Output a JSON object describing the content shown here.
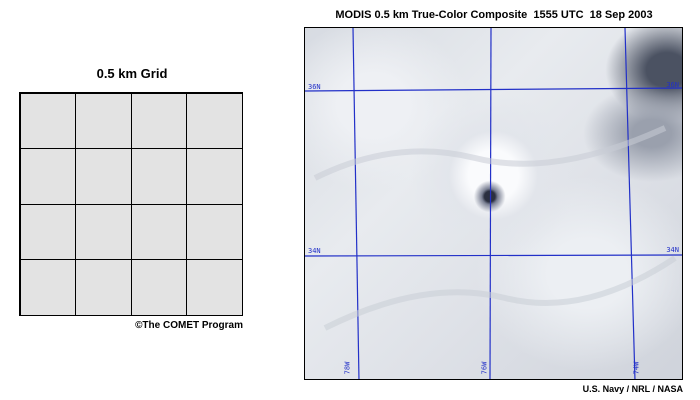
{
  "grid_panel": {
    "title": "0.5 km Grid",
    "credit": "©The COMET Program",
    "cell_color": "#e3e3e3"
  },
  "image_panel": {
    "title": "MODIS 0.5 km True-Color Composite  1555 UTC  18 Sep 2003",
    "credit": "U.S. Navy / NRL / NASA",
    "grid_line_color": "#2230c8",
    "lat_labels": {
      "north": "36N",
      "south": "34N"
    },
    "lon_labels": {
      "west": "78W",
      "center": "76W",
      "east": "74W"
    }
  }
}
